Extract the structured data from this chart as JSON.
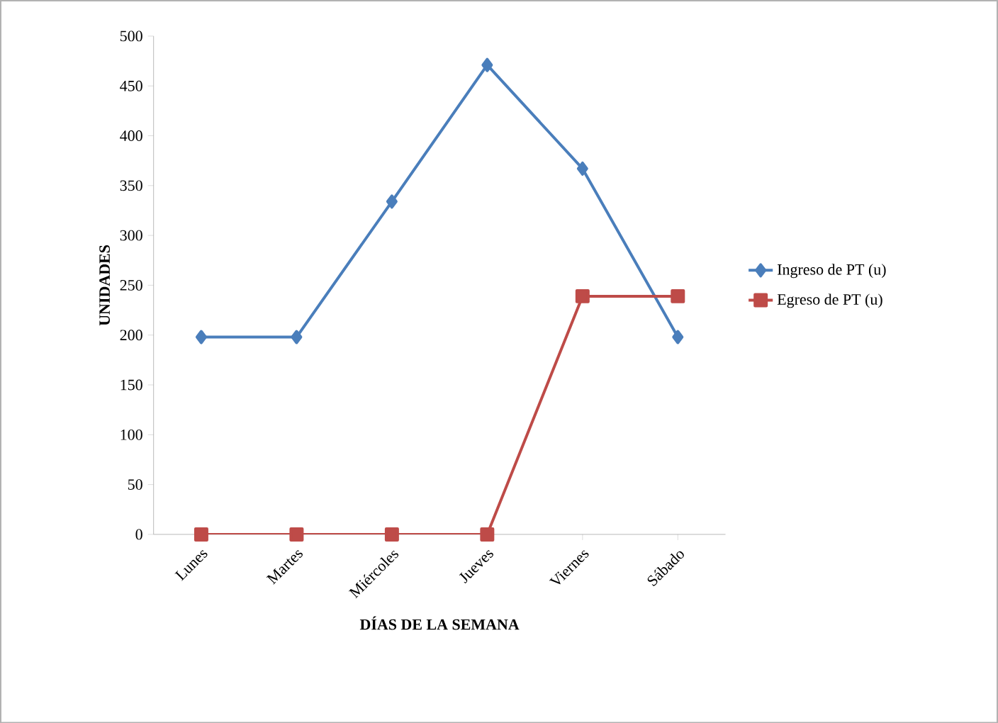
{
  "chart_data": {
    "type": "line",
    "xlabel": "DÍAS DE LA SEMANA",
    "ylabel": "UNIDADES",
    "categories": [
      "Lunes",
      "Martes",
      "Miércoles",
      "Jueves",
      "Viernes",
      "Sábado"
    ],
    "series": [
      {
        "name": "Ingreso de PT (u)",
        "color": "#4a7ebb",
        "marker": "diamond",
        "values": [
          198,
          198,
          334,
          471,
          367,
          198
        ]
      },
      {
        "name": "Egreso de PT (u)",
        "color": "#be4b48",
        "marker": "square",
        "values": [
          0,
          0,
          0,
          0,
          239,
          239
        ]
      }
    ],
    "ylim": [
      0,
      500
    ],
    "yticks": [
      0,
      50,
      100,
      150,
      200,
      250,
      300,
      350,
      400,
      450,
      500
    ],
    "legend": "right",
    "grid": false
  }
}
